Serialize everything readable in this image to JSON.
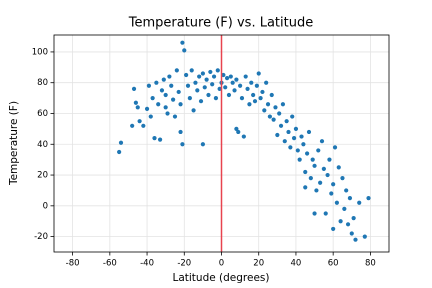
{
  "chart_data": {
    "type": "scatter",
    "title": "Temperature (F) vs. Latitude",
    "x_label": "Latitude (degrees)",
    "y_label": "Temperature (F)",
    "x": [
      -55,
      -54,
      -48,
      -47,
      -46,
      -45,
      -44,
      -42,
      -40,
      -39,
      -38,
      -37,
      -36,
      -35,
      -34,
      -33,
      -32,
      -31,
      -30,
      -30,
      -29,
      -28,
      -27,
      -26,
      -25,
      -24,
      -23,
      -22,
      -22,
      -21,
      -21,
      -20,
      -19,
      -18,
      -17,
      -16,
      -15,
      -14,
      -13,
      -12,
      -11,
      -10,
      -10,
      -9,
      -8,
      -7,
      -6,
      -5,
      -4,
      -3,
      -2,
      -1,
      0,
      1,
      2,
      3,
      4,
      5,
      6,
      7,
      8,
      8,
      9,
      10,
      11,
      12,
      13,
      14,
      15,
      16,
      17,
      18,
      19,
      20,
      21,
      22,
      23,
      24,
      25,
      26,
      27,
      28,
      29,
      30,
      31,
      32,
      33,
      34,
      35,
      36,
      37,
      38,
      39,
      40,
      41,
      42,
      43,
      44,
      45,
      45,
      46,
      47,
      48,
      49,
      50,
      50,
      51,
      52,
      53,
      54,
      55,
      56,
      57,
      58,
      59,
      60,
      60,
      61,
      62,
      63,
      64,
      65,
      66,
      67,
      68,
      69,
      70,
      71,
      72,
      74,
      77,
      79
    ],
    "y": [
      35,
      41,
      52,
      76,
      67,
      64,
      55,
      52,
      63,
      78,
      58,
      70,
      44,
      80,
      66,
      43,
      75,
      82,
      72,
      64,
      60,
      84,
      78,
      69,
      58,
      88,
      74,
      66,
      48,
      106,
      40,
      101,
      85,
      78,
      70,
      88,
      62,
      80,
      75,
      84,
      68,
      86,
      40,
      77,
      82,
      72,
      87,
      79,
      84,
      70,
      88,
      76,
      80,
      85,
      77,
      83,
      72,
      84,
      80,
      75,
      82,
      50,
      48,
      78,
      70,
      45,
      84,
      76,
      66,
      80,
      72,
      68,
      78,
      86,
      70,
      74,
      62,
      80,
      66,
      58,
      72,
      56,
      64,
      46,
      60,
      52,
      66,
      42,
      55,
      48,
      38,
      58,
      44,
      50,
      36,
      30,
      45,
      40,
      22,
      12,
      34,
      48,
      18,
      30,
      26,
      -5,
      10,
      36,
      15,
      42,
      24,
      -5,
      20,
      30,
      8,
      14,
      -15,
      38,
      2,
      25,
      -10,
      18,
      -2,
      10,
      -12,
      5,
      -18,
      -8,
      -22,
      2,
      -20,
      5
    ],
    "color": "#1f77b4",
    "vline": 0,
    "vline_color": "#e8434f",
    "xlim": [
      -90,
      90
    ],
    "ylim": [
      -30,
      111
    ],
    "xticks": [
      -80,
      -60,
      -40,
      -20,
      0,
      20,
      40,
      60,
      80
    ],
    "yticks": [
      -20,
      0,
      20,
      40,
      60,
      80,
      100
    ],
    "grid": true
  }
}
